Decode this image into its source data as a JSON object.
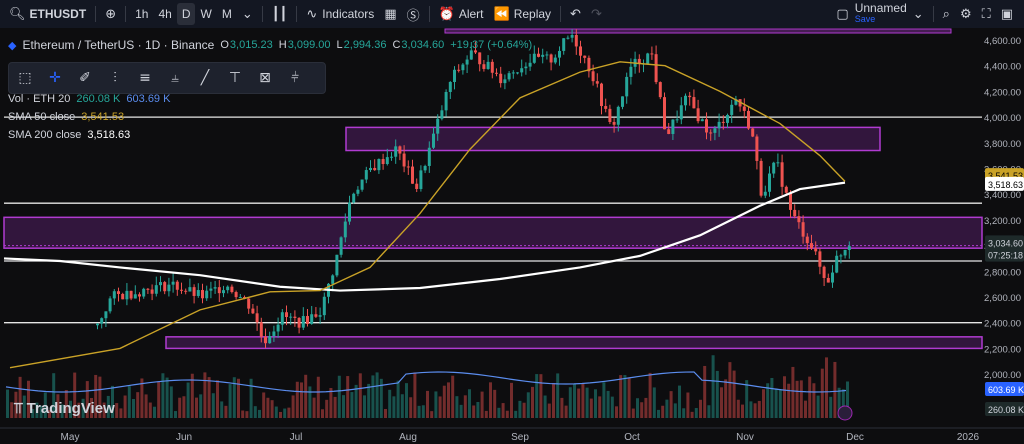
{
  "toolbar": {
    "symbol": "ETHUSDT",
    "intervals": [
      "1h",
      "4h",
      "D",
      "W",
      "M"
    ],
    "selected_interval": "D",
    "indicators_label": "Indicators",
    "alert_label": "Alert",
    "replay_label": "Replay",
    "layout_name": "Unnamed",
    "layout_status": "Save"
  },
  "legend": {
    "title": "Ethereum / TetherUS · 1D · Binance",
    "o_label": "O",
    "o": "3,015.23",
    "h_label": "H",
    "h": "3,099.00",
    "l_label": "L",
    "l": "2,994.36",
    "c_label": "C",
    "c": "3,034.60",
    "change": "+19.37 (+0.64%)",
    "vol_label": "Vol · ETH 20",
    "vol_value1": "260.08 K",
    "vol_value2": "603.69 K",
    "sma50_label": "SMA 50 close",
    "sma50_value": "3,541.53",
    "sma200_label": "SMA 200 close",
    "sma200_value": "3,518.63"
  },
  "price_axis": {
    "ticks": [
      "4,600.00",
      "4,400.00",
      "4,200.00",
      "4,000.00",
      "3,800.00",
      "3,600.00",
      "3,400.00",
      "3,200.00",
      "3,000.00",
      "2,800.00",
      "2,600.00",
      "2,400.00",
      "2,200.00",
      "2,000.00"
    ],
    "sma50_tag": "3,541.53",
    "sma200_tag": "3,518.63",
    "price_tag": "3,034.60",
    "countdown_tag": "07:25:18",
    "vol_ma_tag": "603.69 K",
    "vol_tag": "260.08 K"
  },
  "time_axis": {
    "labels": [
      "May",
      "Jun",
      "Jul",
      "Aug",
      "Sep",
      "Oct",
      "Nov",
      "Dec",
      "2026"
    ]
  },
  "logo_text": "TradingView",
  "colors": {
    "up": "#26a69a",
    "down": "#ef5350",
    "sma50": "#c9a227",
    "sma200": "#ffffff",
    "zone": "#b03bd1",
    "accent": "#2962ff"
  },
  "chart_data": {
    "type": "candlestick",
    "title": "Ethereum / TetherUS · 1D · Binance",
    "ylim": [
      2000,
      4680
    ],
    "horizontal_levels": [
      4000,
      3330,
      2880,
      2400
    ],
    "zones": [
      [
        3740,
        3920
      ],
      [
        2980,
        3220
      ],
      [
        2200,
        2290
      ]
    ],
    "top_zone": 4660,
    "sma50_last": 3541.53,
    "sma200_last": 3518.63,
    "last_close": 3034.6
  }
}
